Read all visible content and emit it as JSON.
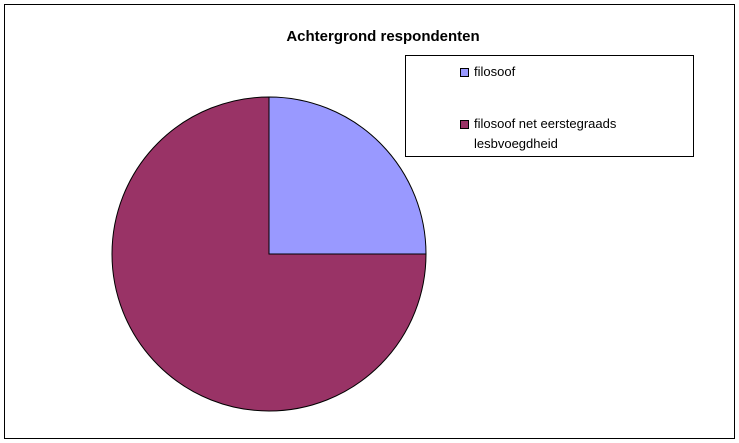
{
  "chart_data": {
    "type": "pie",
    "title": "Achtergrond respondenten",
    "categories": [
      "filosoof",
      "filosoof net eerstegraads lesbvoegdheid"
    ],
    "values": [
      25,
      75
    ],
    "colors": [
      "#9999ff",
      "#993366"
    ]
  }
}
